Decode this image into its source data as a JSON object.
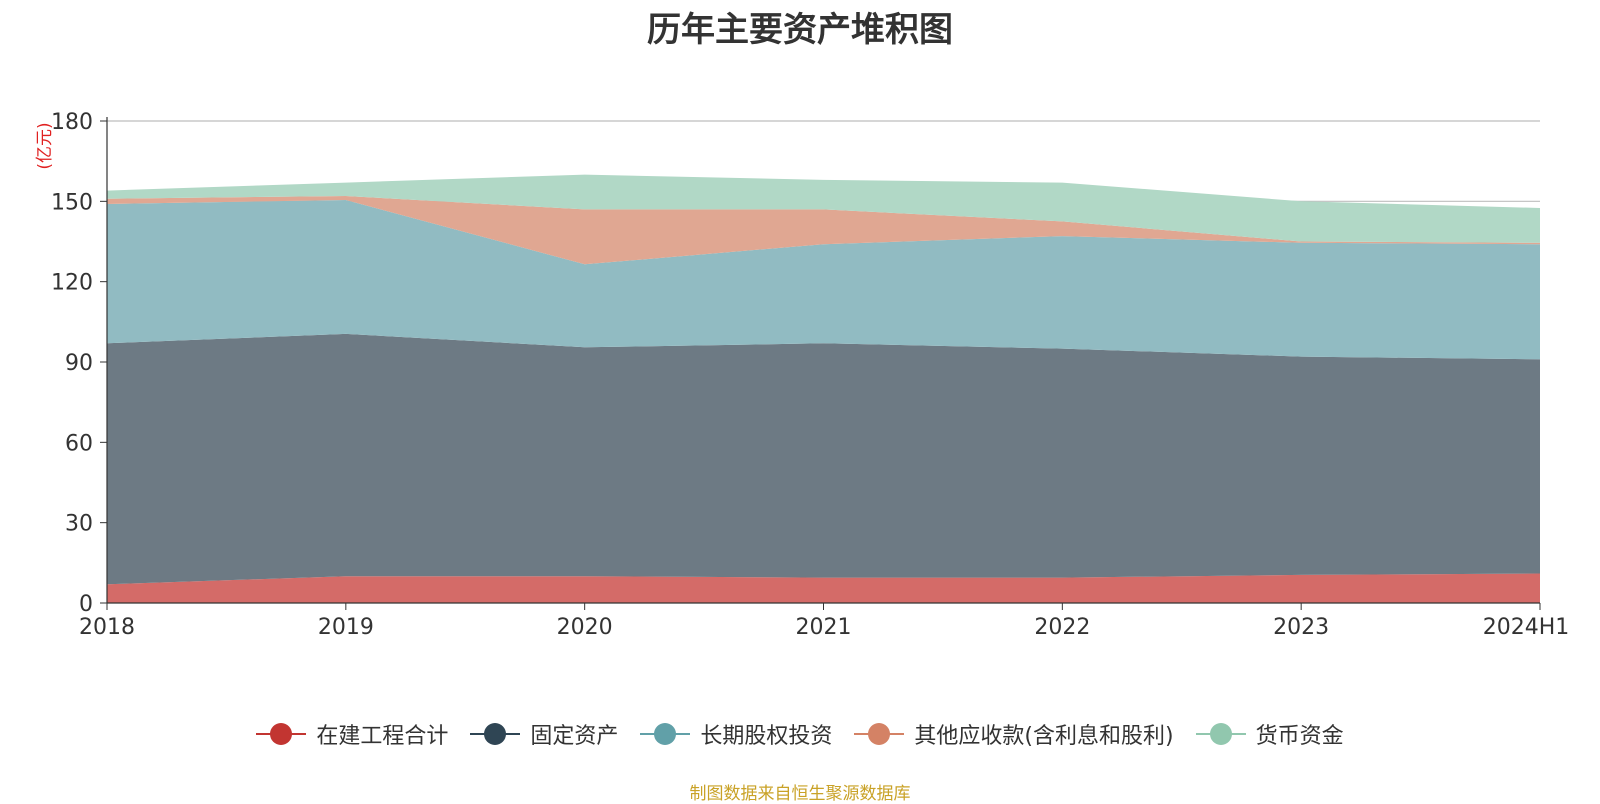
{
  "chart_data": {
    "type": "area",
    "stacked": true,
    "title": "历年主要资产堆积图",
    "unit_label": "(亿元)",
    "categories": [
      "2018",
      "2019",
      "2020",
      "2021",
      "2022",
      "2023",
      "2024H1"
    ],
    "ylim": [
      0,
      180
    ],
    "yticks": [
      "0",
      "30",
      "60",
      "90",
      "120",
      "150",
      "180"
    ],
    "grid": true,
    "legend_position": "bottom",
    "series": [
      {
        "name": "在建工程合计",
        "color": "#c23531",
        "fill": "#d46b68",
        "values": [
          7,
          10,
          10,
          9.5,
          9.5,
          10.5,
          11
        ]
      },
      {
        "name": "固定资产",
        "color": "#2f4554",
        "fill": "#6d7a84",
        "values": [
          90,
          90.5,
          85.5,
          87.5,
          85.5,
          81.5,
          80
        ]
      },
      {
        "name": "长期股权投资",
        "color": "#61a0a8",
        "fill": "#91bbc2",
        "values": [
          52,
          50,
          31,
          37,
          42,
          42.5,
          43
        ]
      },
      {
        "name": "其他应收款(含利息和股利)",
        "color": "#d48265",
        "fill": "#e0a792",
        "values": [
          2,
          1.5,
          20.5,
          13,
          5.5,
          0.5,
          0.5
        ]
      },
      {
        "name": "货币资金",
        "color": "#91c7ae",
        "fill": "#b1d8c6",
        "values": [
          3,
          5,
          13,
          11,
          14.5,
          15,
          13
        ]
      }
    ]
  },
  "footer": {
    "source": "制图数据来自恒生聚源数据库"
  }
}
